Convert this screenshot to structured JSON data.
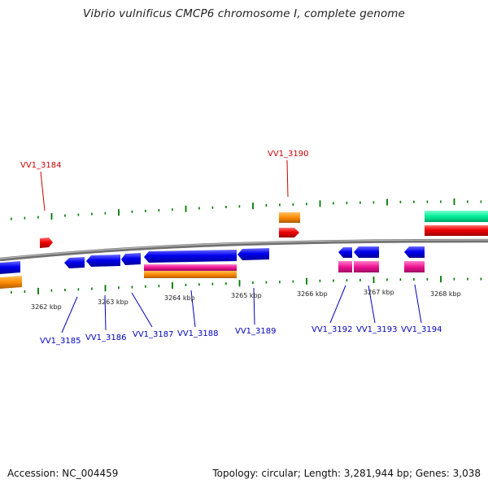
{
  "title": "Vibrio vulnificus CMCP6 chromosome I, complete genome",
  "footer": {
    "accession": "Accession: NC_004459",
    "stats": "Topology: circular; Length: 3,281,944 bp; Genes: 3,038"
  },
  "colors": {
    "backbone": "#808080",
    "forward_cds": "#ee0000",
    "reverse_cds": "#0000ee",
    "rrna": "#ee1493",
    "rna": "#ff8c00",
    "trna": "#00ee99",
    "tick_mark": "#007700",
    "forward_label": "#cc0000",
    "reverse_label": "#0000bb"
  },
  "scale_labels": [
    "3262 kbp",
    "3263 kbp",
    "3264 kbp",
    "3265 kbp",
    "3266 kbp",
    "3267 kbp",
    "3268 kbp"
  ],
  "gene_labels_forward": [
    "VV1_3184",
    "VV1_3190"
  ],
  "gene_labels_reverse": [
    "VV1_3185",
    "VV1_3186",
    "VV1_3187",
    "VV1_3188",
    "VV1_3189",
    "VV1_3192",
    "VV1_3193",
    "VV1_3194"
  ],
  "features": [
    {
      "id": "f1",
      "type": "forward_cds"
    },
    {
      "id": "f2",
      "type": "forward_cds"
    },
    {
      "id": "f3",
      "type": "rna"
    },
    {
      "id": "f4",
      "type": "forward_cds"
    },
    {
      "id": "f5",
      "type": "trna"
    },
    {
      "id": "r1",
      "type": "reverse_cds"
    },
    {
      "id": "r2",
      "type": "reverse_cds"
    },
    {
      "id": "r3",
      "type": "reverse_cds"
    },
    {
      "id": "r4",
      "type": "reverse_cds"
    },
    {
      "id": "r5",
      "type": "reverse_cds"
    },
    {
      "id": "r6",
      "type": "reverse_cds"
    },
    {
      "id": "r7",
      "type": "reverse_cds"
    },
    {
      "id": "r8",
      "type": "reverse_cds"
    },
    {
      "id": "r9",
      "type": "reverse_cds"
    },
    {
      "id": "r10",
      "type": "reverse_cds"
    },
    {
      "id": "p1",
      "type": "rrna"
    },
    {
      "id": "p2",
      "type": "rrna"
    },
    {
      "id": "p3",
      "type": "rrna"
    },
    {
      "id": "p4",
      "type": "rrna"
    },
    {
      "id": "o1",
      "type": "rna"
    },
    {
      "id": "o2",
      "type": "rna"
    }
  ]
}
